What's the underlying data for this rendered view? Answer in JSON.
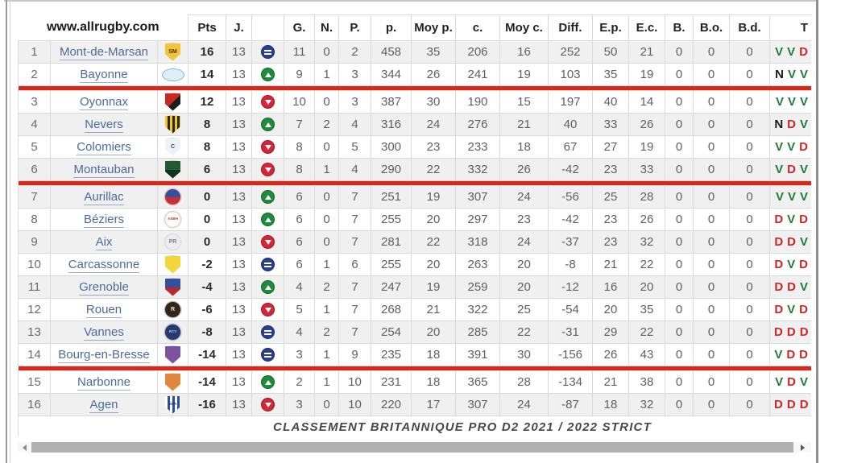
{
  "header": {
    "site_label": "www.allrugby.com",
    "columns": [
      "Pts",
      "J.",
      "",
      "G.",
      "N.",
      "P.",
      "p.",
      "Moy p.",
      "c.",
      "Moy c.",
      "Diff.",
      "E.p.",
      "E.c.",
      "B.",
      "B.o.",
      "B.d.",
      "T"
    ]
  },
  "footer": {
    "caption": "CLASSEMENT BRITANNIQUE PRO D2 2021 / 2022 STRICT"
  },
  "separators_after_rank": [
    2,
    6,
    14
  ],
  "colors": {
    "separator_red": "#d8281c",
    "form": {
      "V": "#1e7d32",
      "D": "#d32525",
      "N": "#1a1a1a"
    },
    "trend": {
      "up": "#1e8c3c",
      "down": "#d42636",
      "equal": "#2b3f8f"
    },
    "link_blue": "#4a6b9e",
    "row_shade": "#f0f0f0"
  },
  "rows": [
    {
      "rank": "1",
      "team": "Mont-de-Marsan",
      "pts": "16",
      "j": "13",
      "trend": "equal",
      "g": "11",
      "n": "0",
      "p": "2",
      "pf": "458",
      "avgf": "35",
      "pa": "206",
      "avga": "16",
      "diff": "252",
      "ep": "50",
      "ec": "21",
      "b": "0",
      "bo": "0",
      "bd": "0",
      "form": "V V D",
      "logo": {
        "shape": "shield",
        "c1": "#f3c33a",
        "c2": "#6b4d14",
        "split": "none",
        "label": "SM",
        "label_color": "#4a3708"
      }
    },
    {
      "rank": "2",
      "team": "Bayonne",
      "pts": "14",
      "j": "13",
      "trend": "up",
      "g": "9",
      "n": "1",
      "p": "3",
      "pf": "344",
      "avgf": "26",
      "pa": "241",
      "avga": "19",
      "diff": "103",
      "ep": "35",
      "ec": "19",
      "b": "0",
      "bo": "0",
      "bd": "0",
      "form": "N V V",
      "logo": {
        "shape": "oval",
        "c1": "#ddeef8",
        "c2": "#7fb6d9",
        "split": "none",
        "label": "",
        "label_color": "#2a6a9e"
      }
    },
    {
      "rank": "3",
      "team": "Oyonnax",
      "pts": "12",
      "j": "13",
      "trend": "down",
      "g": "10",
      "n": "0",
      "p": "3",
      "pf": "387",
      "avgf": "30",
      "pa": "190",
      "avga": "15",
      "diff": "197",
      "ep": "40",
      "ec": "14",
      "b": "0",
      "bo": "0",
      "bd": "0",
      "form": "V V V",
      "logo": {
        "shape": "shield",
        "c1": "#c8281e",
        "c2": "#1c1c1c",
        "split": "diag",
        "label": "",
        "label_color": "#ffffff"
      }
    },
    {
      "rank": "4",
      "team": "Nevers",
      "pts": "8",
      "j": "13",
      "trend": "up",
      "g": "7",
      "n": "2",
      "p": "4",
      "pf": "316",
      "avgf": "24",
      "pa": "276",
      "avga": "21",
      "diff": "40",
      "ep": "33",
      "ec": "26",
      "b": "0",
      "bo": "0",
      "bd": "0",
      "form": "N D V",
      "logo": {
        "shape": "shield",
        "c1": "#f2c530",
        "c2": "#2a2719",
        "split": "stripes",
        "label": "",
        "label_color": "#ffffff"
      }
    },
    {
      "rank": "5",
      "team": "Colomiers",
      "pts": "8",
      "j": "13",
      "trend": "down",
      "g": "8",
      "n": "0",
      "p": "5",
      "pf": "300",
      "avgf": "23",
      "pa": "233",
      "avga": "18",
      "diff": "67",
      "ep": "27",
      "ec": "19",
      "b": "0",
      "bo": "0",
      "bd": "0",
      "form": "V V D",
      "logo": {
        "shape": "shield",
        "c1": "#eef2f7",
        "c2": "#27486e",
        "split": "none",
        "label": "C",
        "label_color": "#27486e"
      }
    },
    {
      "rank": "6",
      "team": "Montauban",
      "pts": "6",
      "j": "13",
      "trend": "down",
      "g": "8",
      "n": "1",
      "p": "4",
      "pf": "290",
      "avgf": "22",
      "pa": "332",
      "avga": "26",
      "diff": "-42",
      "ep": "23",
      "ec": "33",
      "b": "0",
      "bo": "0",
      "bd": "0",
      "form": "V D V",
      "logo": {
        "shape": "shield",
        "c1": "#1f5a33",
        "c2": "#13321e",
        "split": "horiz",
        "label": "",
        "label_color": "#ffffff"
      }
    },
    {
      "rank": "7",
      "team": "Aurillac",
      "pts": "0",
      "j": "13",
      "trend": "up",
      "g": "6",
      "n": "0",
      "p": "7",
      "pf": "251",
      "avgf": "19",
      "pa": "307",
      "avga": "24",
      "diff": "-56",
      "ep": "25",
      "ec": "28",
      "b": "0",
      "bo": "0",
      "bd": "0",
      "form": "V V V",
      "logo": {
        "shape": "circle",
        "c1": "#30519c",
        "c2": "#c22f36",
        "split": "horiz",
        "label": "",
        "label_color": "#ffffff"
      }
    },
    {
      "rank": "8",
      "team": "Béziers",
      "pts": "0",
      "j": "13",
      "trend": "up",
      "g": "6",
      "n": "0",
      "p": "7",
      "pf": "255",
      "avgf": "20",
      "pa": "297",
      "avga": "23",
      "diff": "-42",
      "ep": "23",
      "ec": "26",
      "b": "0",
      "bo": "0",
      "bd": "0",
      "form": "D V D",
      "logo": {
        "shape": "circle",
        "c1": "#ffffff",
        "c2": "#cc2a26",
        "split": "none",
        "label": "ASBH",
        "label_color": "#cc2a26"
      }
    },
    {
      "rank": "9",
      "team": "Aix",
      "pts": "0",
      "j": "13",
      "trend": "down",
      "g": "6",
      "n": "0",
      "p": "7",
      "pf": "281",
      "avgf": "22",
      "pa": "318",
      "avga": "24",
      "diff": "-37",
      "ep": "23",
      "ec": "32",
      "b": "0",
      "bo": "0",
      "bd": "0",
      "form": "D D V",
      "logo": {
        "shape": "circle",
        "c1": "#ececec",
        "c2": "#a9adb3",
        "split": "none",
        "label": "PR",
        "label_color": "#7d838c"
      }
    },
    {
      "rank": "10",
      "team": "Carcassonne",
      "pts": "-2",
      "j": "13",
      "trend": "equal",
      "g": "6",
      "n": "1",
      "p": "6",
      "pf": "255",
      "avgf": "20",
      "pa": "263",
      "avga": "20",
      "diff": "-8",
      "ep": "21",
      "ec": "22",
      "b": "0",
      "bo": "0",
      "bd": "0",
      "form": "D V D",
      "logo": {
        "shape": "shield",
        "c1": "#f3d63c",
        "c2": "#23211a",
        "split": "none",
        "label": "",
        "label_color": "#23211a"
      }
    },
    {
      "rank": "11",
      "team": "Grenoble",
      "pts": "-4",
      "j": "13",
      "trend": "up",
      "g": "4",
      "n": "2",
      "p": "7",
      "pf": "247",
      "avgf": "19",
      "pa": "259",
      "avga": "20",
      "diff": "-12",
      "ep": "16",
      "ec": "20",
      "b": "0",
      "bo": "0",
      "bd": "0",
      "form": "D D V",
      "logo": {
        "shape": "shield",
        "c1": "#30519c",
        "c2": "#b7292f",
        "split": "horiz",
        "label": "",
        "label_color": "#ffffff"
      }
    },
    {
      "rank": "12",
      "team": "Rouen",
      "pts": "-6",
      "j": "13",
      "trend": "down",
      "g": "5",
      "n": "1",
      "p": "7",
      "pf": "268",
      "avgf": "21",
      "pa": "322",
      "avga": "25",
      "diff": "-54",
      "ep": "20",
      "ec": "35",
      "b": "0",
      "bo": "0",
      "bd": "0",
      "form": "D V D",
      "logo": {
        "shape": "circle",
        "c1": "#33251a",
        "c2": "#15100a",
        "split": "none",
        "label": "R",
        "label_color": "#f0e6d8"
      }
    },
    {
      "rank": "13",
      "team": "Vannes",
      "pts": "-8",
      "j": "13",
      "trend": "equal",
      "g": "4",
      "n": "2",
      "p": "7",
      "pf": "254",
      "avgf": "20",
      "pa": "285",
      "avga": "22",
      "diff": "-31",
      "ep": "29",
      "ec": "22",
      "b": "0",
      "bo": "0",
      "bd": "0",
      "form": "D D D",
      "logo": {
        "shape": "circle",
        "c1": "#27396e",
        "c2": "#17234a",
        "split": "none",
        "label": "RCV",
        "label_color": "#aac8e8"
      }
    },
    {
      "rank": "14",
      "team": "Bourg-en-Bresse",
      "pts": "-14",
      "j": "13",
      "trend": "equal",
      "g": "3",
      "n": "1",
      "p": "9",
      "pf": "235",
      "avgf": "18",
      "pa": "391",
      "avga": "30",
      "diff": "-156",
      "ep": "26",
      "ec": "43",
      "b": "0",
      "bo": "0",
      "bd": "0",
      "form": "V D D",
      "logo": {
        "shape": "shield",
        "c1": "#7c52a0",
        "c2": "#4e3268",
        "split": "none",
        "label": "",
        "label_color": "#ffffff"
      }
    },
    {
      "rank": "15",
      "team": "Narbonne",
      "pts": "-14",
      "j": "13",
      "trend": "up",
      "g": "2",
      "n": "1",
      "p": "10",
      "pf": "231",
      "avgf": "18",
      "pa": "365",
      "avga": "28",
      "diff": "-134",
      "ep": "21",
      "ec": "38",
      "b": "0",
      "bo": "0",
      "bd": "0",
      "form": "V D V",
      "logo": {
        "shape": "shield",
        "c1": "#e1873d",
        "c2": "#9e501d",
        "split": "none",
        "label": "",
        "label_color": "#ffffff"
      }
    },
    {
      "rank": "16",
      "team": "Agen",
      "pts": "-16",
      "j": "13",
      "trend": "down",
      "g": "3",
      "n": "0",
      "p": "10",
      "pf": "220",
      "avgf": "17",
      "pa": "307",
      "avga": "24",
      "diff": "-87",
      "ep": "18",
      "ec": "32",
      "b": "0",
      "bo": "0",
      "bd": "0",
      "form": "D D D",
      "logo": {
        "shape": "shield",
        "c1": "#ffffff",
        "c2": "#2c4f9c",
        "split": "stripes",
        "label": "SUA",
        "label_color": "#1c3a78"
      }
    }
  ]
}
